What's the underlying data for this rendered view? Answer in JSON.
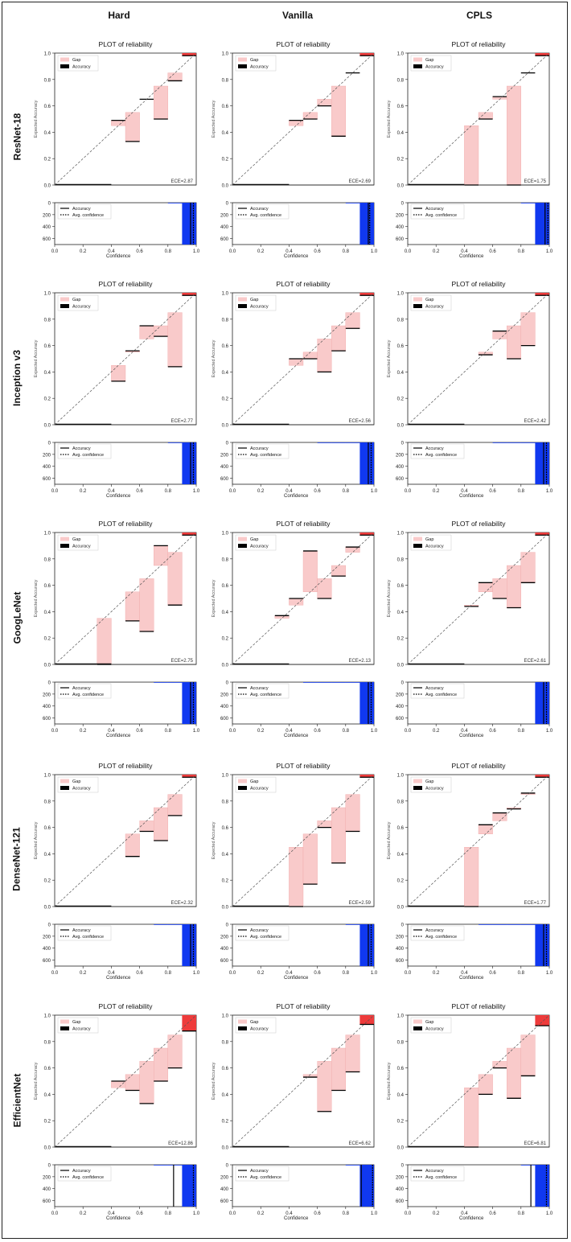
{
  "columns": [
    "Hard",
    "Vanilla",
    "CPLS"
  ],
  "rows": [
    "ResNet-18",
    "Inception v3",
    "GoogLeNet",
    "DenseNet-121",
    "EfficientNet"
  ],
  "colors": {
    "gap_fill": "#f9caca",
    "gap_stroke": "#f0a8a8",
    "last_bin_fill": "#ee3b3b",
    "accuracy_line": "#000000",
    "count_bar": "#1038f0",
    "diagonal": "#555555"
  },
  "chart_data": {
    "type": "reliability_diagram_grid",
    "title": "PLOT of reliability",
    "reliability_ylabel": "Expected Accuracy",
    "xlabel": "Confidence",
    "reliability_ylim": [
      0,
      1
    ],
    "reliability_yticks": [
      "0.0",
      "0.2",
      "0.4",
      "0.6",
      "0.8",
      "1.0"
    ],
    "histogram_yticks": [
      "0",
      "200",
      "400",
      "600"
    ],
    "xticks": [
      "0.0",
      "0.2",
      "0.4",
      "0.6",
      "0.8",
      "1.0"
    ],
    "legend_gap": "Gap",
    "legend_accuracy": "Accuracy",
    "hist_legend_accuracy": "Accuracy",
    "hist_legend_avg_conf": "Avg. confidence",
    "panels": [
      [
        {
          "ece": "ECE=2.87",
          "bins": [
            {
              "x": 0.4,
              "acc": 0.49
            },
            {
              "x": 0.5,
              "acc": 0.33
            },
            {
              "x": 0.6,
              "acc": 0.65
            },
            {
              "x": 0.7,
              "acc": 0.5
            },
            {
              "x": 0.8,
              "acc": 0.79
            }
          ],
          "hist_bins": [
            {
              "x": 0.8,
              "c": 8
            },
            {
              "x": 0.9,
              "c": 700
            }
          ],
          "hist_lines": [
            0.96,
            0.98
          ]
        },
        {
          "ece": "ECE=2.69",
          "bins": [
            {
              "x": 0.4,
              "acc": 0.49
            },
            {
              "x": 0.5,
              "acc": 0.5
            },
            {
              "x": 0.6,
              "acc": 0.6
            },
            {
              "x": 0.7,
              "acc": 0.37
            },
            {
              "x": 0.8,
              "acc": 0.85
            }
          ],
          "hist_bins": [
            {
              "x": 0.8,
              "c": 6
            },
            {
              "x": 0.9,
              "c": 700
            }
          ],
          "hist_lines": [
            0.96,
            0.97
          ]
        },
        {
          "ece": "ECE=1.75",
          "bins": [
            {
              "x": 0.4,
              "acc": 0.0
            },
            {
              "x": 0.5,
              "acc": 0.5
            },
            {
              "x": 0.6,
              "acc": 0.67
            },
            {
              "x": 0.7,
              "acc": 0.0
            },
            {
              "x": 0.8,
              "acc": 0.85
            }
          ],
          "hist_bins": [
            {
              "x": 0.8,
              "c": 6
            },
            {
              "x": 0.9,
              "c": 700
            }
          ],
          "hist_lines": [
            0.97,
            0.99
          ]
        }
      ],
      [
        {
          "ece": "ECE=2.77",
          "bins": [
            {
              "x": 0.4,
              "acc": 0.33
            },
            {
              "x": 0.5,
              "acc": 0.56
            },
            {
              "x": 0.6,
              "acc": 0.75
            },
            {
              "x": 0.7,
              "acc": 0.67
            },
            {
              "x": 0.8,
              "acc": 0.44
            }
          ],
          "hist_bins": [
            {
              "x": 0.8,
              "c": 6
            },
            {
              "x": 0.9,
              "c": 700
            }
          ],
          "hist_lines": [
            0.96,
            0.98
          ]
        },
        {
          "ece": "ECE=2.56",
          "bins": [
            {
              "x": 0.4,
              "acc": 0.5
            },
            {
              "x": 0.5,
              "acc": 0.5
            },
            {
              "x": 0.6,
              "acc": 0.4
            },
            {
              "x": 0.7,
              "acc": 0.56
            },
            {
              "x": 0.8,
              "acc": 0.73
            }
          ],
          "hist_bins": [
            {
              "x": 0.6,
              "c": 5
            },
            {
              "x": 0.7,
              "c": 6
            },
            {
              "x": 0.8,
              "c": 8
            },
            {
              "x": 0.9,
              "c": 700
            }
          ],
          "hist_lines": [
            0.96,
            0.98
          ]
        },
        {
          "ece": "ECE=2.42",
          "bins": [
            {
              "x": 0.5,
              "acc": 0.53
            },
            {
              "x": 0.6,
              "acc": 0.71
            },
            {
              "x": 0.7,
              "acc": 0.5
            },
            {
              "x": 0.8,
              "acc": 0.6
            }
          ],
          "hist_bins": [
            {
              "x": 0.6,
              "c": 5
            },
            {
              "x": 0.7,
              "c": 6
            },
            {
              "x": 0.8,
              "c": 8
            },
            {
              "x": 0.9,
              "c": 700
            }
          ],
          "hist_lines": [
            0.96,
            0.98
          ]
        }
      ],
      [
        {
          "ece": "ECE=2.75",
          "bins": [
            {
              "x": 0.3,
              "acc": 0.0
            },
            {
              "x": 0.5,
              "acc": 0.33
            },
            {
              "x": 0.6,
              "acc": 0.25
            },
            {
              "x": 0.7,
              "acc": 0.9
            },
            {
              "x": 0.8,
              "acc": 0.45
            }
          ],
          "hist_bins": [
            {
              "x": 0.7,
              "c": 5
            },
            {
              "x": 0.8,
              "c": 8
            },
            {
              "x": 0.9,
              "c": 700
            }
          ],
          "hist_lines": [
            0.96,
            0.98
          ]
        },
        {
          "ece": "ECE=2.13",
          "bins": [
            {
              "x": 0.3,
              "acc": 0.37
            },
            {
              "x": 0.4,
              "acc": 0.5
            },
            {
              "x": 0.5,
              "acc": 0.86
            },
            {
              "x": 0.6,
              "acc": 0.5
            },
            {
              "x": 0.7,
              "acc": 0.67
            },
            {
              "x": 0.8,
              "acc": 0.89
            }
          ],
          "hist_bins": [
            {
              "x": 0.5,
              "c": 4
            },
            {
              "x": 0.6,
              "c": 4
            },
            {
              "x": 0.7,
              "c": 5
            },
            {
              "x": 0.8,
              "c": 7
            },
            {
              "x": 0.9,
              "c": 700
            }
          ],
          "hist_lines": [
            0.96,
            0.98
          ]
        },
        {
          "ece": "ECE=2.61",
          "bins": [
            {
              "x": 0.4,
              "acc": 0.44
            },
            {
              "x": 0.5,
              "acc": 0.62
            },
            {
              "x": 0.6,
              "acc": 0.5
            },
            {
              "x": 0.7,
              "acc": 0.43
            },
            {
              "x": 0.8,
              "acc": 0.62
            }
          ],
          "hist_bins": [
            {
              "x": 0.9,
              "c": 700
            }
          ],
          "hist_lines": [
            0.96,
            0.98
          ]
        }
      ],
      [
        {
          "ece": "ECE=2.32",
          "bins": [
            {
              "x": 0.5,
              "acc": 0.38
            },
            {
              "x": 0.6,
              "acc": 0.57
            },
            {
              "x": 0.7,
              "acc": 0.5
            },
            {
              "x": 0.8,
              "acc": 0.69
            }
          ],
          "hist_bins": [
            {
              "x": 0.7,
              "c": 5
            },
            {
              "x": 0.8,
              "c": 10
            },
            {
              "x": 0.9,
              "c": 700
            }
          ],
          "hist_lines": [
            0.96,
            0.98
          ]
        },
        {
          "ece": "ECE=2.59",
          "bins": [
            {
              "x": 0.4,
              "acc": 0.0
            },
            {
              "x": 0.5,
              "acc": 0.17
            },
            {
              "x": 0.6,
              "acc": 0.6
            },
            {
              "x": 0.7,
              "acc": 0.33
            },
            {
              "x": 0.8,
              "acc": 0.57
            }
          ],
          "hist_bins": [
            {
              "x": 0.8,
              "c": 8
            },
            {
              "x": 0.9,
              "c": 700
            }
          ],
          "hist_lines": [
            0.96,
            0.98
          ]
        },
        {
          "ece": "ECE=1.77",
          "bins": [
            {
              "x": 0.4,
              "acc": 0.0
            },
            {
              "x": 0.5,
              "acc": 0.62
            },
            {
              "x": 0.6,
              "acc": 0.71
            },
            {
              "x": 0.7,
              "acc": 0.74
            },
            {
              "x": 0.8,
              "acc": 0.86
            }
          ],
          "hist_bins": [
            {
              "x": 0.5,
              "c": 4
            },
            {
              "x": 0.6,
              "c": 4
            },
            {
              "x": 0.7,
              "c": 5
            },
            {
              "x": 0.8,
              "c": 7
            },
            {
              "x": 0.9,
              "c": 700
            }
          ],
          "hist_lines": [
            0.96,
            0.98
          ]
        }
      ],
      [
        {
          "ece": "ECE=12.86",
          "bins": [
            {
              "x": 0.4,
              "acc": 0.5
            },
            {
              "x": 0.5,
              "acc": 0.43
            },
            {
              "x": 0.6,
              "acc": 0.33
            },
            {
              "x": 0.7,
              "acc": 0.5
            },
            {
              "x": 0.8,
              "acc": 0.6
            }
          ],
          "last_bin_acc": 0.88,
          "hist_bins": [
            {
              "x": 0.7,
              "c": 5
            },
            {
              "x": 0.8,
              "c": 8
            },
            {
              "x": 0.9,
              "c": 700
            }
          ],
          "hist_lines": [
            0.84,
            0.98
          ]
        },
        {
          "ece": "ECE=6.62",
          "bins": [
            {
              "x": 0.5,
              "acc": 0.53
            },
            {
              "x": 0.6,
              "acc": 0.27
            },
            {
              "x": 0.7,
              "acc": 0.43
            },
            {
              "x": 0.8,
              "acc": 0.57
            }
          ],
          "last_bin_acc": 0.93,
          "hist_bins": [
            {
              "x": 0.8,
              "c": 6
            },
            {
              "x": 0.9,
              "c": 700
            }
          ],
          "hist_lines": [
            0.91,
            0.99
          ]
        },
        {
          "ece": "ECE=6.81",
          "bins": [
            {
              "x": 0.4,
              "acc": 0.0
            },
            {
              "x": 0.5,
              "acc": 0.4
            },
            {
              "x": 0.6,
              "acc": 0.6
            },
            {
              "x": 0.7,
              "acc": 0.37
            },
            {
              "x": 0.8,
              "acc": 0.54
            }
          ],
          "last_bin_acc": 0.92,
          "hist_bins": [
            {
              "x": 0.8,
              "c": 6
            },
            {
              "x": 0.9,
              "c": 700
            }
          ],
          "hist_lines": [
            0.87,
            0.98
          ]
        }
      ]
    ]
  }
}
